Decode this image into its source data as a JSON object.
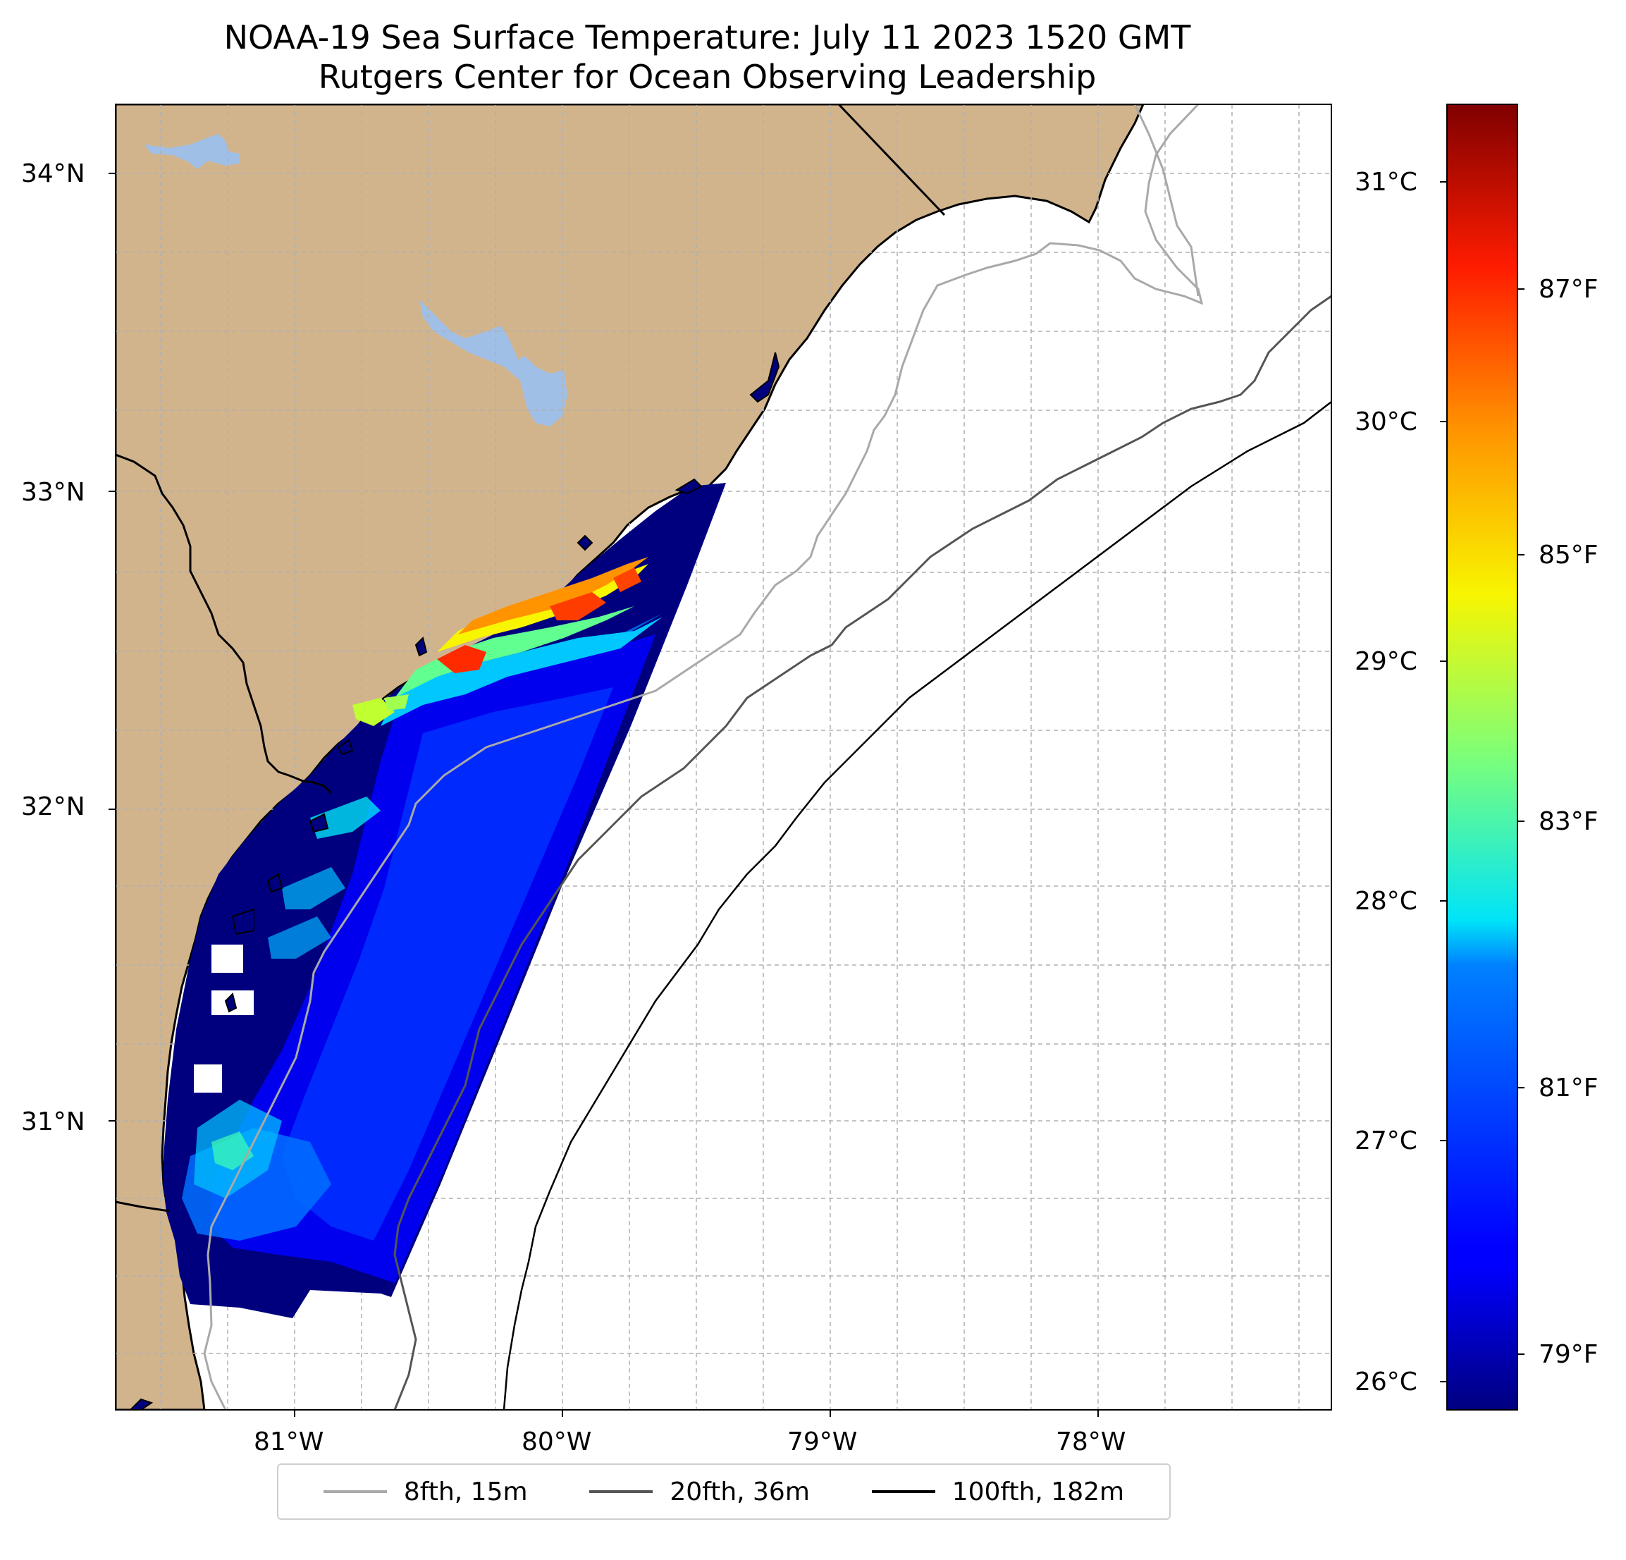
{
  "title": {
    "line1": "NOAA-19 Sea Surface Temperature: July 11 2023 1520 GMT",
    "line2": "Rutgers Center for Ocean Observing Leadership"
  },
  "map": {
    "lat_labels": [
      "34°N",
      "33°N",
      "32°N",
      "31°N"
    ],
    "lon_labels": [
      "81°W",
      "80°W",
      "79°W",
      "78°W"
    ],
    "colors": {
      "land": "#d2b48c",
      "lakes": "#a0bfe6",
      "ocean": "#ffffff",
      "grid": "#b0b0b0"
    }
  },
  "colorbar": {
    "celsius_labels": [
      "31°C",
      "30°C",
      "29°C",
      "28°C",
      "27°C",
      "26°C"
    ],
    "fahrenheit_labels": [
      "87°F",
      "85°F",
      "83°F",
      "81°F",
      "79°F"
    ],
    "colormap": "jet"
  },
  "legend": {
    "items": [
      {
        "label": "8fth, 15m",
        "color": "#a9a9a9"
      },
      {
        "label": "20fth, 36m",
        "color": "#555555"
      },
      {
        "label": "100fth, 182m",
        "color": "#000000"
      }
    ]
  }
}
